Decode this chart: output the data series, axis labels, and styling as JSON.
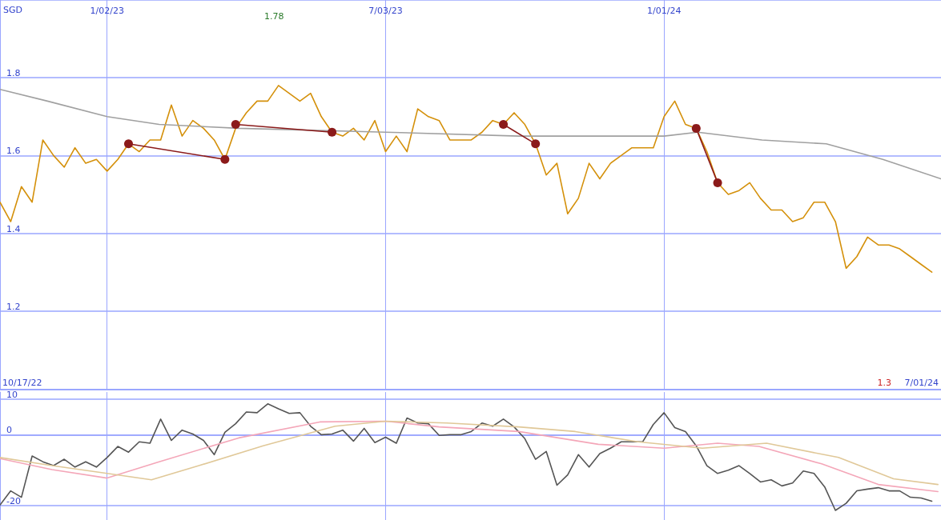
{
  "chart_data": [
    {
      "type": "line",
      "ylabel": "SGD",
      "xlim": [
        "2022-10-24",
        "2024-06-30"
      ],
      "xticks": [
        {
          "value": "2023-01-02",
          "label": "1/02/23"
        },
        {
          "value": "2023-07-03",
          "label": "7/03/23"
        },
        {
          "value": "2024-01-01",
          "label": "1/01/24"
        }
      ],
      "ylim": [
        1.0,
        2.0
      ],
      "yticks": [
        1.2,
        1.4,
        1.6,
        1.8
      ],
      "grid": true,
      "annotations": [
        "1.78",
        "10/17/22",
        "1.3",
        "7/01/24"
      ],
      "x": [
        "2022-10-24",
        "2022-10-31",
        "2022-11-07",
        "2022-11-14",
        "2022-11-21",
        "2022-11-28",
        "2022-12-05",
        "2022-12-12",
        "2022-12-19",
        "2022-12-26",
        "2023-01-02",
        "2023-01-09",
        "2023-01-16",
        "2023-01-23",
        "2023-01-30",
        "2023-02-06",
        "2023-02-13",
        "2023-02-20",
        "2023-02-27",
        "2023-03-06",
        "2023-03-13",
        "2023-03-20",
        "2023-03-27",
        "2023-04-03",
        "2023-04-10",
        "2023-04-17",
        "2023-04-24",
        "2023-05-01",
        "2023-05-08",
        "2023-05-15",
        "2023-05-22",
        "2023-05-29",
        "2023-06-05",
        "2023-06-12",
        "2023-06-19",
        "2023-06-26",
        "2023-07-03",
        "2023-07-10",
        "2023-07-17",
        "2023-07-24",
        "2023-07-31",
        "2023-08-07",
        "2023-08-14",
        "2023-08-21",
        "2023-08-28",
        "2023-09-04",
        "2023-09-11",
        "2023-09-18",
        "2023-09-25",
        "2023-10-02",
        "2023-10-09",
        "2023-10-16",
        "2023-10-23",
        "2023-10-30",
        "2023-11-06",
        "2023-11-13",
        "2023-11-20",
        "2023-11-27",
        "2023-12-04",
        "2023-12-11",
        "2023-12-18",
        "2023-12-25",
        "2024-01-01",
        "2024-01-08",
        "2024-01-15",
        "2024-01-22",
        "2024-01-29",
        "2024-02-05",
        "2024-02-12",
        "2024-02-19",
        "2024-02-26",
        "2024-03-04",
        "2024-03-11",
        "2024-03-18",
        "2024-03-25",
        "2024-04-01",
        "2024-04-08",
        "2024-04-15",
        "2024-04-22",
        "2024-04-29",
        "2024-05-06",
        "2024-05-13",
        "2024-05-20",
        "2024-05-27",
        "2024-06-03",
        "2024-06-10",
        "2024-06-17",
        "2024-06-24"
      ],
      "series": [
        {
          "color": "#d4900a",
          "marker": "none",
          "values": [
            1.48,
            1.43,
            1.52,
            1.48,
            1.64,
            1.6,
            1.57,
            1.62,
            1.58,
            1.59,
            1.56,
            1.59,
            1.63,
            1.61,
            1.64,
            1.64,
            1.73,
            1.65,
            1.69,
            1.67,
            1.64,
            1.59,
            1.67,
            1.71,
            1.74,
            1.74,
            1.78,
            1.76,
            1.74,
            1.76,
            1.7,
            1.66,
            1.65,
            1.67,
            1.64,
            1.69,
            1.61,
            1.65,
            1.61,
            1.72,
            1.7,
            1.69,
            1.64,
            1.64,
            1.64,
            1.66,
            1.69,
            1.68,
            1.71,
            1.68,
            1.63,
            1.55,
            1.58,
            1.45,
            1.49,
            1.58,
            1.54,
            1.58,
            1.6,
            1.62,
            1.62,
            1.62,
            1.7,
            1.74,
            1.68,
            1.67,
            1.61,
            1.53,
            1.5,
            1.51,
            1.53,
            1.49,
            1.46,
            1.46,
            1.43,
            1.44,
            1.48,
            1.48,
            1.43,
            1.31,
            1.34,
            1.39,
            1.37,
            1.37,
            1.36,
            1.34,
            1.32,
            1.3
          ]
        },
        {
          "color": "#a0a0a0",
          "marker": "none",
          "x": [
            "2022-10-24",
            "2022-11-24",
            "2023-01-02",
            "2023-02-05",
            "2023-03-29",
            "2023-07-03",
            "2023-09-28",
            "2024-01-01",
            "2024-01-23",
            "2024-03-05",
            "2024-04-16",
            "2024-05-23",
            "2024-06-30"
          ],
          "values": [
            1.77,
            1.74,
            1.7,
            1.68,
            1.67,
            1.66,
            1.65,
            1.65,
            1.66,
            1.64,
            1.63,
            1.59,
            1.54
          ]
        },
        {
          "color": "#8b1a1a",
          "marker": "circle",
          "x": [
            "2023-01-16",
            "2023-03-20"
          ],
          "values": [
            1.63,
            1.59
          ]
        },
        {
          "color": "#8b1a1a",
          "marker": "circle",
          "x": [
            "2023-03-27",
            "2023-05-29"
          ],
          "values": [
            1.68,
            1.66
          ]
        },
        {
          "color": "#8b1a1a",
          "marker": "circle",
          "x": [
            "2023-09-18",
            "2023-10-09"
          ],
          "values": [
            1.68,
            1.63
          ]
        },
        {
          "color": "#8b1a1a",
          "marker": "circle",
          "x": [
            "2024-01-22",
            "2024-02-05"
          ],
          "values": [
            1.67,
            1.53
          ]
        }
      ]
    },
    {
      "type": "line",
      "xlim": [
        "2022-10-24",
        "2024-06-30"
      ],
      "xticks": [
        {
          "value": "2023-01-02",
          "label": null
        },
        {
          "value": "2023-07-03",
          "label": null
        },
        {
          "value": "2024-01-01",
          "label": null
        }
      ],
      "ylim": [
        -24,
        12
      ],
      "yticks": [
        -20,
        0,
        10
      ],
      "grid": true,
      "tick_labels": "y",
      "x": [
        "2022-10-24",
        "2022-10-31",
        "2022-11-07",
        "2022-11-14",
        "2022-11-21",
        "2022-11-28",
        "2022-12-05",
        "2022-12-12",
        "2022-12-19",
        "2022-12-26",
        "2023-01-02",
        "2023-01-09",
        "2023-01-16",
        "2023-01-23",
        "2023-01-30",
        "2023-02-06",
        "2023-02-13",
        "2023-02-20",
        "2023-02-27",
        "2023-03-06",
        "2023-03-13",
        "2023-03-20",
        "2023-03-27",
        "2023-04-03",
        "2023-04-10",
        "2023-04-17",
        "2023-04-24",
        "2023-05-01",
        "2023-05-08",
        "2023-05-15",
        "2023-05-22",
        "2023-05-29",
        "2023-06-05",
        "2023-06-12",
        "2023-06-19",
        "2023-06-26",
        "2023-07-03",
        "2023-07-10",
        "2023-07-17",
        "2023-07-24",
        "2023-07-31",
        "2023-08-07",
        "2023-08-14",
        "2023-08-21",
        "2023-08-28",
        "2023-09-04",
        "2023-09-11",
        "2023-09-18",
        "2023-09-25",
        "2023-10-02",
        "2023-10-09",
        "2023-10-16",
        "2023-10-23",
        "2023-10-30",
        "2023-11-06",
        "2023-11-13",
        "2023-11-20",
        "2023-11-27",
        "2023-12-04",
        "2023-12-11",
        "2023-12-18",
        "2023-12-25",
        "2024-01-01",
        "2024-01-08",
        "2024-01-15",
        "2024-01-22",
        "2024-01-29",
        "2024-02-05",
        "2024-02-12",
        "2024-02-19",
        "2024-02-26",
        "2024-03-04",
        "2024-03-11",
        "2024-03-18",
        "2024-03-25",
        "2024-04-01",
        "2024-04-08",
        "2024-04-15",
        "2024-04-22",
        "2024-04-29",
        "2024-05-06",
        "2024-05-13",
        "2024-05-20",
        "2024-05-27",
        "2024-06-03",
        "2024-06-10",
        "2024-06-17",
        "2024-06-24"
      ],
      "series": [
        {
          "color": "#555555",
          "marker": "none",
          "values": [
            -19.8,
            -15.8,
            -17.6,
            -6.0,
            -7.6,
            -8.7,
            -6.9,
            -9.1,
            -7.6,
            -9.1,
            -6.4,
            -3.3,
            -4.9,
            -2.0,
            -2.4,
            4.4,
            -1.6,
            1.3,
            0.2,
            -1.6,
            -5.6,
            0.7,
            3.1,
            6.4,
            6.2,
            8.7,
            7.3,
            6.0,
            6.2,
            2.4,
            0,
            0.2,
            1.3,
            -1.8,
            1.8,
            -2.2,
            -0.7,
            -2.4,
            4.7,
            3.3,
            3.1,
            -0.2,
            0,
            0,
            0.9,
            3.3,
            2.4,
            4.4,
            2.2,
            -1.1,
            -6.9,
            -4.7,
            -14.2,
            -11.3,
            -5.6,
            -9.1,
            -5.3,
            -3.8,
            -2.0,
            -2.0,
            -2.0,
            2.9,
            6.2,
            2.0,
            0.9,
            -3.1,
            -8.7,
            -10.9,
            -10.0,
            -8.7,
            -10.9,
            -13.3,
            -12.7,
            -14.4,
            -13.6,
            -10.2,
            -10.9,
            -14.7,
            -21.3,
            -19.3,
            -15.8,
            -15.3,
            -14.9,
            -15.8,
            -15.8,
            -17.6,
            -17.8,
            -18.7
          ]
        },
        {
          "color": "#f4a6b8",
          "marker": "none",
          "x": [
            "2022-10-24",
            "2022-11-27",
            "2023-01-02",
            "2023-02-05",
            "2023-03-29",
            "2023-05-21",
            "2023-07-03",
            "2023-08-07",
            "2023-09-28",
            "2023-11-19",
            "2024-01-01",
            "2024-02-05",
            "2024-03-03",
            "2024-04-13",
            "2024-05-20",
            "2024-06-28"
          ],
          "values": [
            -6.7,
            -9.8,
            -12.2,
            -7.6,
            -0.9,
            3.6,
            3.8,
            2.2,
            0.9,
            -2.7,
            -3.8,
            -2.4,
            -3.3,
            -8.2,
            -14.0,
            -16.0
          ]
        },
        {
          "color": "#e0c898",
          "marker": "none",
          "x": [
            "2022-10-24",
            "2022-11-27",
            "2023-01-02",
            "2023-01-31",
            "2023-03-03",
            "2023-04-14",
            "2023-05-31",
            "2023-07-03",
            "2023-08-12",
            "2023-09-28",
            "2023-11-04",
            "2023-12-15",
            "2024-01-26",
            "2024-03-08",
            "2024-04-24",
            "2024-05-30",
            "2024-06-28"
          ],
          "values": [
            -6.4,
            -8.7,
            -10.9,
            -12.7,
            -8.7,
            -3.1,
            2.4,
            3.8,
            3.3,
            2.2,
            0.9,
            -2.0,
            -3.8,
            -2.4,
            -6.4,
            -12.4,
            -14.0
          ]
        }
      ]
    }
  ]
}
